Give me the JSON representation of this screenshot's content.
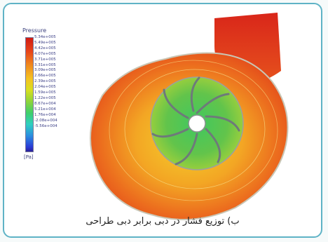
{
  "legend": {
    "title": "Pressure",
    "unit": "[Pa]",
    "values": [
      "5.34e+005",
      "5.49e+005",
      "4.42e+005",
      "4.07e+005",
      "3.71e+005",
      "3.31e+005",
      "3.09e+005",
      "2.66e+005",
      "2.39e+005",
      "2.04e+005",
      "1.59e+005",
      "1.22e+005",
      "8.67e+004",
      "5.21e+004",
      "1.76e+004",
      "-2.08e+004",
      "-5.56e+004"
    ]
  },
  "caption": "ب) توزیع فشار در دبی برابر  دبی طراحی",
  "colors": {
    "frame_border": "#5fb3c6",
    "high_pressure": "#e0301a",
    "mid_pressure": "#f0a020",
    "impeller": "#6ac54a"
  },
  "icons": [
    "pump-pressure-contour-image"
  ]
}
